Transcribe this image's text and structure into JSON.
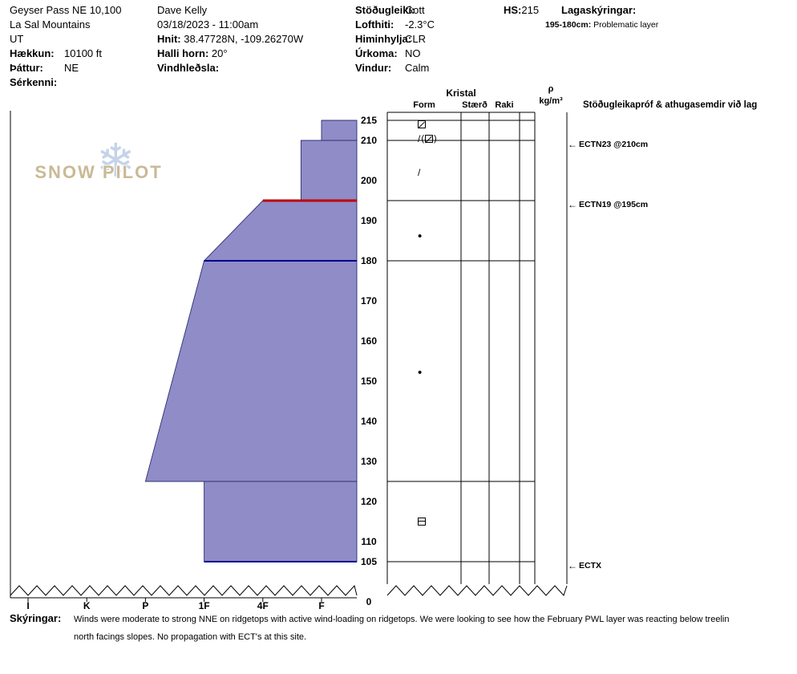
{
  "title_block": {
    "site_name": "Geyser Pass NE 10,100",
    "range": "La Sal Mountains",
    "state": "UT",
    "elevation_label": "Hækkun:",
    "elevation_value": "10100 ft",
    "aspect_label": "Þáttur:",
    "aspect_value": "NE",
    "special_label": "Sérkenni:",
    "observer": "Dave Kelly",
    "datetime": "03/18/2023 - 11:00am",
    "coords_label": "Hnit:",
    "coords_value": "38.47728N, -109.26270W",
    "slope_angle_label": "Halli horn:",
    "slope_angle_value": "20°",
    "wind_loading_label": "Vindhleðsla:",
    "stability_label": "Stöðugleiki:",
    "stability_value": "Gott",
    "air_temp_label": "Lofthiti:",
    "air_temp_value": "-2.3°C",
    "sky_label": "Himinhylja:",
    "sky_value": "CLR",
    "precip_label": "Úrkoma:",
    "precip_value": "NO",
    "wind_label": "Vindur:",
    "wind_value": "Calm",
    "hs_label": "HS:",
    "hs_value": "215",
    "layer_notes_label": "Lagaskýringar:",
    "layer_note_range": "195-180cm:",
    "layer_note_text": "Problematic layer"
  },
  "logo": {
    "snowflake_icon": "❄",
    "text": "SNOW PILOT"
  },
  "table": {
    "group_header": "Kristal",
    "col_form": "Form",
    "col_size": "Stærð",
    "col_moisture": "Raki",
    "density_symbol": "ρ",
    "density_unit": "kg/m³",
    "stability_header": "Stöðugleikapróf & athugasemdir við lag"
  },
  "icons": {
    "test_arrow": "←"
  },
  "footer": {
    "label": "Skýringar:",
    "line1": "Winds were moderate to strong NNE on ridgetops with active wind-loading on ridgetops. We were looking to see how the February PWL layer was reacting below treelin",
    "line2": "north facings slopes. No propagation with ECT's at this site."
  },
  "chart_data": {
    "type": "area",
    "description": "Snow pit hardness profile: depth (cm) vs hand hardness; harder layers extend further left",
    "total_depth_cm": 215,
    "depth_ticks": [
      215,
      210,
      200,
      190,
      180,
      170,
      160,
      150,
      140,
      130,
      120,
      110,
      105
    ],
    "zero_label": "0",
    "hardness_ticks": [
      "I",
      "K",
      "P",
      "1F",
      "4F",
      "F"
    ],
    "layers": [
      {
        "top_cm": 215,
        "bottom_cm": 210,
        "hardness_top": "F",
        "hardness_bottom": "F"
      },
      {
        "top_cm": 210,
        "bottom_cm": 195,
        "hardness_top": "F+",
        "hardness_bottom": "F+"
      },
      {
        "top_cm": 195,
        "bottom_cm": 180,
        "hardness_top": "4F",
        "hardness_bottom": "1F"
      },
      {
        "top_cm": 180,
        "bottom_cm": 125,
        "hardness_top": "1F",
        "hardness_bottom": "P"
      },
      {
        "top_cm": 125,
        "bottom_cm": 105,
        "hardness_top": "1F",
        "hardness_bottom": "1F"
      }
    ],
    "marker_lines": [
      {
        "cm": 195,
        "start_hardness": "4F",
        "color": "#c00000",
        "width": 3,
        "meaning": "problematic layer"
      },
      {
        "cm": 180,
        "start_hardness": "1F",
        "color": "#00008b",
        "width": 2,
        "meaning": "layer boundary"
      },
      {
        "cm": 105,
        "start_hardness": "1F",
        "color": "#00008b",
        "width": 2,
        "meaning": "bottom of profile"
      }
    ],
    "table_row_boundaries": [
      215,
      210,
      195,
      180,
      125,
      105
    ],
    "grain_forms": [
      {
        "cm": 214,
        "glyphs": [
          "square-slash"
        ]
      },
      {
        "cm": 210.5,
        "glyphs": [
          "slash",
          "(",
          "square-slash",
          ")"
        ]
      },
      {
        "cm": 202,
        "glyphs": [
          "slash"
        ]
      },
      {
        "cm": 186,
        "glyphs": [
          "dot"
        ]
      },
      {
        "cm": 152,
        "glyphs": [
          "dot"
        ]
      },
      {
        "cm": 115,
        "glyphs": [
          "square-bar"
        ]
      }
    ],
    "tests": [
      {
        "cm": 210,
        "label": "ECTN23 @210cm"
      },
      {
        "cm": 195,
        "label": "ECTN19 @195cm"
      },
      {
        "cm": 105,
        "label": "ECTX"
      }
    ],
    "colors": {
      "layer_fill": "#8f8cc8",
      "layer_stroke": "#2f2f72",
      "problem_line": "#c00000",
      "boundary_line": "#00008b",
      "grid_line": "#000000"
    },
    "legend_position": "none",
    "grid": false
  }
}
